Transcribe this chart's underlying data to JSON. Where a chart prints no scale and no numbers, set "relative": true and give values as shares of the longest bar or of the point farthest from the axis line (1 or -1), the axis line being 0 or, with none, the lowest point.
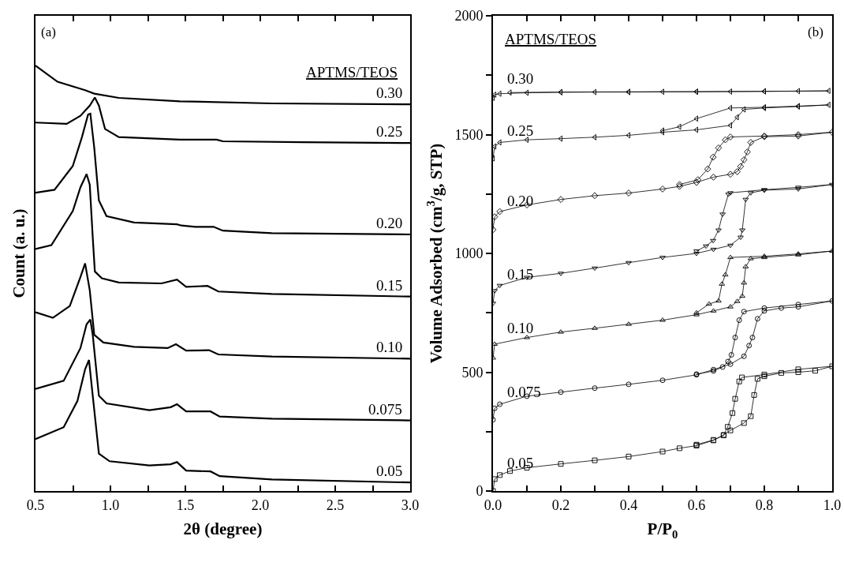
{
  "chart_data": [
    {
      "type": "line",
      "relative": true,
      "xlabel": "2θ (degree)",
      "ylabel": "Count (a. u.)",
      "legend_title": "APTMS/TEOS",
      "annotations": [
        "(a)"
      ],
      "line_style": "solid",
      "xlim": [
        0.5,
        3.0
      ],
      "xticks": [
        0.5,
        {
          "value": 0.75,
          "label": null
        },
        {
          "value": 1,
          "label": "1.0"
        },
        {
          "value": 1.25,
          "label": null
        },
        1.5,
        {
          "value": 1.75,
          "label": null
        },
        {
          "value": 2,
          "label": "2.0"
        },
        {
          "value": 2.25,
          "label": null
        },
        2.5,
        {
          "value": 2.75,
          "label": null
        },
        {
          "value": 3,
          "label": "3.0"
        }
      ],
      "series": [
        {
          "name": "0.30",
          "color": "#000000",
          "x": [
            0.5,
            0.647,
            0.831,
            0.892,
            1.056,
            1.464,
            2.077,
            3.0
          ],
          "values": [
            1.0,
            0.962,
            0.942,
            0.934,
            0.924,
            0.916,
            0.911,
            0.909
          ]
        },
        {
          "name": "0.25",
          "color": "#000000",
          "x": [
            0.5,
            0.708,
            0.8,
            0.862,
            0.896,
            0.923,
            0.964,
            1.056,
            1.464,
            1.709,
            1.75,
            2.281,
            3.0
          ],
          "values": [
            0.866,
            0.863,
            0.882,
            0.906,
            0.925,
            0.906,
            0.851,
            0.832,
            0.826,
            0.826,
            0.822,
            0.82,
            0.818
          ]
        },
        {
          "name": "0.20",
          "color": "#000000",
          "x": [
            0.5,
            0.627,
            0.749,
            0.81,
            0.851,
            0.866,
            0.892,
            0.923,
            0.974,
            1.158,
            1.444,
            1.474,
            1.566,
            1.688,
            1.75,
            2.077,
            3.0
          ],
          "values": [
            0.701,
            0.708,
            0.764,
            0.832,
            0.885,
            0.887,
            0.807,
            0.683,
            0.646,
            0.631,
            0.627,
            0.624,
            0.621,
            0.621,
            0.612,
            0.606,
            0.603
          ]
        },
        {
          "name": "0.15",
          "color": "#000000",
          "x": [
            0.5,
            0.606,
            0.749,
            0.8,
            0.841,
            0.862,
            0.882,
            0.896,
            0.943,
            1.056,
            1.341,
            1.444,
            1.505,
            1.648,
            1.72,
            2.077,
            3.0
          ],
          "values": [
            0.569,
            0.578,
            0.658,
            0.714,
            0.745,
            0.72,
            0.596,
            0.516,
            0.5,
            0.49,
            0.488,
            0.497,
            0.48,
            0.482,
            0.469,
            0.463,
            0.457
          ]
        },
        {
          "name": "0.10",
          "color": "#000000",
          "x": [
            0.5,
            0.616,
            0.729,
            0.8,
            0.831,
            0.862,
            0.892,
            0.953,
            1.158,
            1.382,
            1.437,
            1.505,
            1.658,
            1.72,
            2.077,
            3.0
          ],
          "values": [
            0.42,
            0.407,
            0.435,
            0.503,
            0.535,
            0.472,
            0.367,
            0.349,
            0.339,
            0.336,
            0.345,
            0.33,
            0.331,
            0.321,
            0.316,
            0.311
          ]
        },
        {
          "name": "0.075",
          "color": "#000000",
          "x": [
            0.5,
            0.688,
            0.8,
            0.841,
            0.866,
            0.882,
            0.923,
            0.974,
            1.26,
            1.402,
            1.444,
            1.505,
            1.668,
            1.729,
            2.077,
            3.0
          ],
          "values": [
            0.24,
            0.259,
            0.336,
            0.392,
            0.403,
            0.367,
            0.224,
            0.206,
            0.19,
            0.197,
            0.204,
            0.187,
            0.187,
            0.175,
            0.17,
            0.166
          ]
        },
        {
          "name": "0.05",
          "color": "#000000",
          "x": [
            0.5,
            0.688,
            0.78,
            0.831,
            0.857,
            0.882,
            0.923,
            0.994,
            1.26,
            1.402,
            1.444,
            1.505,
            1.668,
            1.729,
            2.077,
            3.0
          ],
          "values": [
            0.122,
            0.15,
            0.212,
            0.286,
            0.308,
            0.224,
            0.088,
            0.07,
            0.06,
            0.063,
            0.068,
            0.048,
            0.046,
            0.035,
            0.027,
            0.02
          ]
        }
      ]
    },
    {
      "type": "line",
      "xlabel": "P/P$_{0}$",
      "ylabel": "Volume Adsorbed (cm$^{3}$/g, STP)",
      "legend_title": "APTMS/TEOS",
      "annotations": [
        "(b)"
      ],
      "line_style": "solid",
      "xlim": [
        0,
        1
      ],
      "ylim": [
        0,
        2000
      ],
      "xticks": [
        {
          "value": 0,
          "label": "0.0"
        },
        {
          "value": 0.1,
          "label": null
        },
        0.2,
        {
          "value": 0.3,
          "label": null
        },
        0.4,
        {
          "value": 0.5,
          "label": null
        },
        0.6,
        {
          "value": 0.7,
          "label": null
        },
        0.8,
        {
          "value": 0.9,
          "label": null
        },
        {
          "value": 1,
          "label": "1.0"
        }
      ],
      "yticks": [
        0,
        {
          "value": 250,
          "label": null
        },
        500,
        {
          "value": 750,
          "label": null
        },
        1000,
        {
          "value": 1250,
          "label": null
        },
        1500,
        {
          "value": 1750,
          "label": null
        },
        2000
      ],
      "series": [
        {
          "name": "0.30",
          "color": "#000000",
          "marker": "triangle-left",
          "x": [
            0,
            0.005,
            0.02,
            0.1,
            0.2,
            0.3,
            0.4,
            0.5,
            0.6,
            0.7,
            0.8,
            0.9,
            0.99,
            0.8,
            0.6,
            0.4,
            0.2,
            0.05
          ],
          "values": [
            1655,
            1668,
            1672,
            1676,
            1678,
            1679,
            1679,
            1680,
            1680,
            1681,
            1682,
            1683,
            1684,
            1682,
            1681,
            1680,
            1679,
            1677
          ]
        },
        {
          "name": "0.25",
          "color": "#000000",
          "marker": "triangle-left",
          "x": [
            0,
            0.005,
            0.02,
            0.1,
            0.2,
            0.3,
            0.4,
            0.5,
            0.6,
            0.7,
            0.72,
            0.74,
            0.8,
            0.9,
            0.99,
            0.9,
            0.8,
            0.7,
            0.6,
            0.55,
            0.5
          ],
          "values": [
            1400,
            1450,
            1467,
            1478,
            1483,
            1489,
            1497,
            1510,
            1520,
            1539,
            1573,
            1606,
            1612,
            1618,
            1625,
            1620,
            1615,
            1612,
            1567,
            1533,
            1517
          ]
        },
        {
          "name": "0.20",
          "color": "#000000",
          "marker": "diamond",
          "x": [
            0,
            0.005,
            0.02,
            0.1,
            0.2,
            0.3,
            0.4,
            0.5,
            0.55,
            0.6,
            0.65,
            0.7,
            0.72,
            0.73,
            0.74,
            0.75,
            0.76,
            0.8,
            0.9,
            1.0,
            0.9,
            0.8,
            0.7,
            0.685,
            0.665,
            0.649,
            0.633,
            0.604,
            0.55
          ],
          "values": [
            1100,
            1154,
            1176,
            1204,
            1227,
            1243,
            1254,
            1271,
            1282,
            1299,
            1321,
            1333,
            1344,
            1366,
            1394,
            1427,
            1467,
            1491,
            1494,
            1510,
            1500,
            1494,
            1490,
            1478,
            1444,
            1405,
            1355,
            1310,
            1290
          ]
        },
        {
          "name": "0.15",
          "color": "#000000",
          "marker": "triangle-down",
          "x": [
            0,
            0.005,
            0.02,
            0.1,
            0.2,
            0.3,
            0.4,
            0.5,
            0.6,
            0.65,
            0.7,
            0.73,
            0.735,
            0.745,
            0.76,
            0.8,
            0.9,
            1.0,
            0.9,
            0.8,
            0.7,
            0.694,
            0.677,
            0.665,
            0.649,
            0.628,
            0.6
          ],
          "values": [
            790,
            843,
            865,
            899,
            916,
            938,
            961,
            983,
            1000,
            1017,
            1034,
            1068,
            1098,
            1227,
            1255,
            1266,
            1271,
            1290,
            1278,
            1268,
            1255,
            1249,
            1165,
            1098,
            1054,
            1031,
            1010
          ]
        },
        {
          "name": "0.10",
          "color": "#000000",
          "marker": "triangle",
          "x": [
            0,
            0.005,
            0.1,
            0.2,
            0.3,
            0.4,
            0.5,
            0.6,
            0.65,
            0.7,
            0.72,
            0.735,
            0.74,
            0.745,
            0.76,
            0.8,
            0.9,
            1.0,
            0.9,
            0.8,
            0.7,
            0.685,
            0.675,
            0.665,
            0.637,
            0.6
          ],
          "values": [
            560,
            618,
            646,
            669,
            685,
            702,
            719,
            742,
            758,
            775,
            798,
            820,
            876,
            944,
            978,
            983,
            994,
            1010,
            998,
            988,
            983,
            910,
            871,
            800,
            787,
            750
          ]
        },
        {
          "name": "0.075",
          "color": "#000000",
          "marker": "circle",
          "x": [
            0,
            0.005,
            0.02,
            0.1,
            0.2,
            0.3,
            0.4,
            0.5,
            0.6,
            0.65,
            0.7,
            0.74,
            0.755,
            0.765,
            0.78,
            0.8,
            0.85,
            0.9,
            1.0,
            0.9,
            0.8,
            0.74,
            0.726,
            0.714,
            0.703,
            0.693,
            0.677,
            0.65,
            0.6
          ],
          "values": [
            300,
            348,
            365,
            399,
            416,
            433,
            449,
            466,
            489,
            511,
            534,
            567,
            612,
            646,
            725,
            758,
            770,
            775,
            800,
            785,
            770,
            755,
            719,
            646,
            573,
            545,
            522,
            505,
            492
          ]
        },
        {
          "name": "0.05",
          "color": "#000000",
          "marker": "square",
          "x": [
            0,
            0.005,
            0.02,
            0.05,
            0.1,
            0.2,
            0.3,
            0.4,
            0.5,
            0.55,
            0.6,
            0.65,
            0.68,
            0.7,
            0.74,
            0.76,
            0.77,
            0.78,
            0.8,
            0.85,
            0.9,
            0.95,
            1.0,
            0.9,
            0.8,
            0.734,
            0.726,
            0.714,
            0.706,
            0.692,
            0.68,
            0.65,
            0.6
          ],
          "values": [
            0,
            50,
            67,
            84,
            98,
            114,
            129,
            145,
            166,
            180,
            191,
            213,
            236,
            255,
            286,
            315,
            404,
            472,
            483,
            497,
            500,
            506,
            525,
            512,
            490,
            478,
            461,
            388,
            328,
            270,
            234,
            215,
            195
          ]
        }
      ]
    }
  ]
}
